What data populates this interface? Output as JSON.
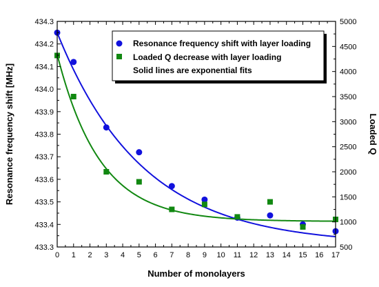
{
  "chart_data": {
    "type": "scatter",
    "xlabel": "Number of monolayers",
    "ylabel_left": "Resonance frequency shift [MHz]",
    "ylabel_right": "Loaded Q",
    "xlim": [
      0,
      17
    ],
    "ylim_left": [
      433.3,
      434.3
    ],
    "ylim_right": [
      500,
      5000
    ],
    "x_ticks": [
      "0",
      "1",
      "2",
      "3",
      "4",
      "5",
      "6",
      "7",
      "8",
      "9",
      "10",
      "11",
      "12",
      "13",
      "14",
      "15",
      "16",
      "17"
    ],
    "y_left_ticks": [
      "433.3",
      "433.4",
      "433.5",
      "433.6",
      "433.7",
      "433.8",
      "433.9",
      "434.0",
      "434.1",
      "434.2",
      "434.3"
    ],
    "y_right_ticks": [
      "500",
      "1000",
      "1500",
      "2000",
      "2500",
      "3000",
      "3500",
      "4000",
      "4500",
      "5000"
    ],
    "grid": false,
    "legend_position": "top-right",
    "series": [
      {
        "name": "Resonance frequency shift with layer loading",
        "axis": "left",
        "color": "#1111dd",
        "marker": "circle",
        "x": [
          0,
          1,
          3,
          5,
          7,
          9,
          11,
          13,
          15,
          17
        ],
        "y": [
          434.25,
          434.12,
          433.83,
          433.72,
          433.57,
          433.51,
          433.43,
          433.44,
          433.4,
          433.37
        ],
        "fit": {
          "y_inf": 433.31,
          "amplitude": 0.94,
          "tau": 5.2
        }
      },
      {
        "name": "Loaded Q decrease with layer loading",
        "axis": "right",
        "color": "#118811",
        "marker": "square",
        "x": [
          0,
          1,
          3,
          5,
          7,
          9,
          11,
          13,
          15,
          17
        ],
        "y": [
          4320,
          3500,
          2000,
          1800,
          1250,
          1350,
          1100,
          1400,
          900,
          1050
        ],
        "fit": {
          "y_inf": 1010,
          "amplitude": 3330,
          "tau": 2.6
        }
      }
    ],
    "annotation": "Solid lines are exponential fits"
  }
}
